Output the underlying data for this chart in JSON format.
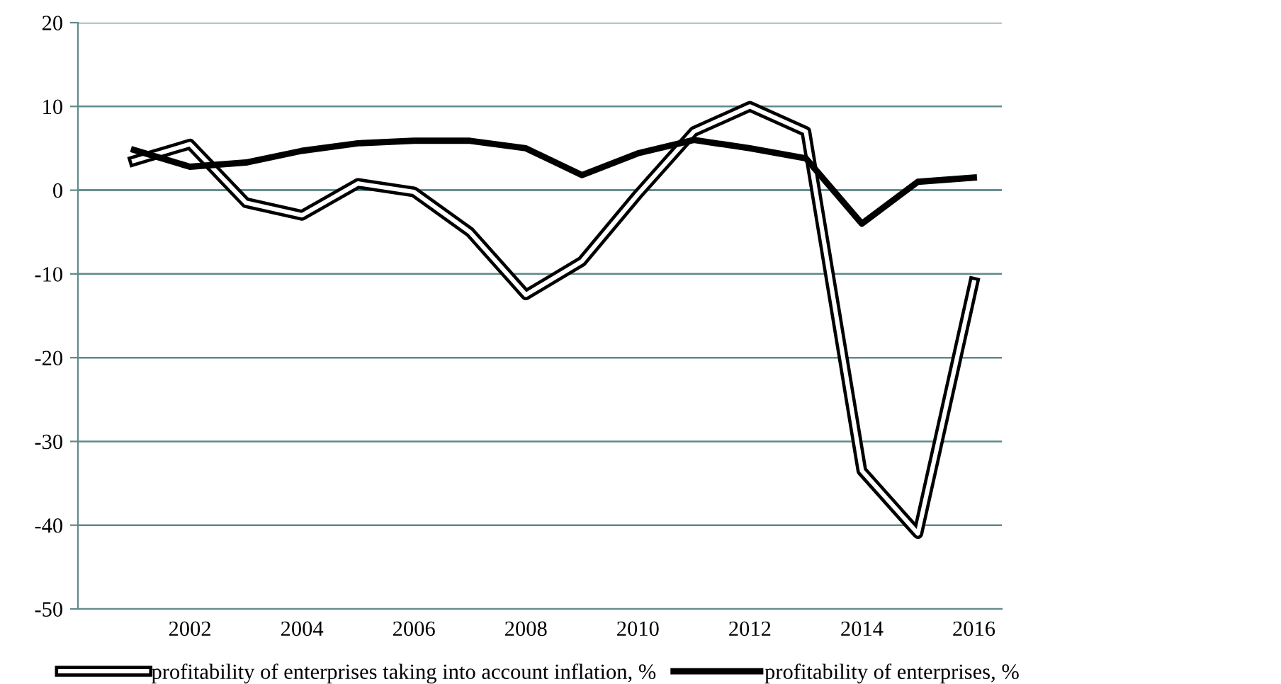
{
  "chart_data": {
    "type": "line",
    "categories": [
      null,
      "2002",
      null,
      "2004",
      null,
      "2006",
      null,
      "2008",
      null,
      "2010",
      null,
      "2012",
      null,
      "2014",
      null,
      "2016"
    ],
    "series": [
      {
        "name": "profitability of enterprises taking into account inflation, %",
        "color": "#000000",
        "values": [
          3.5,
          5.5,
          -1.5,
          -3,
          0.8,
          -0.2,
          -5,
          -12.5,
          -8.5,
          -0.5,
          7,
          10,
          7,
          -33.5,
          -41,
          -11
        ]
      },
      {
        "name": "profitability of enterprises, %",
        "color": "#000000",
        "values": [
          4.8,
          2.8,
          3.3,
          4.7,
          5.6,
          5.9,
          5.9,
          5,
          1.8,
          4.4,
          6,
          5,
          3.8,
          -4,
          1,
          1.5
        ]
      }
    ],
    "ylim": [
      -50,
      20
    ],
    "yticks": [
      -50,
      -40,
      -30,
      -20,
      -10,
      0,
      10,
      20
    ],
    "grid": "y",
    "legend": "bottom",
    "marker": "none",
    "line_style": "solid"
  }
}
